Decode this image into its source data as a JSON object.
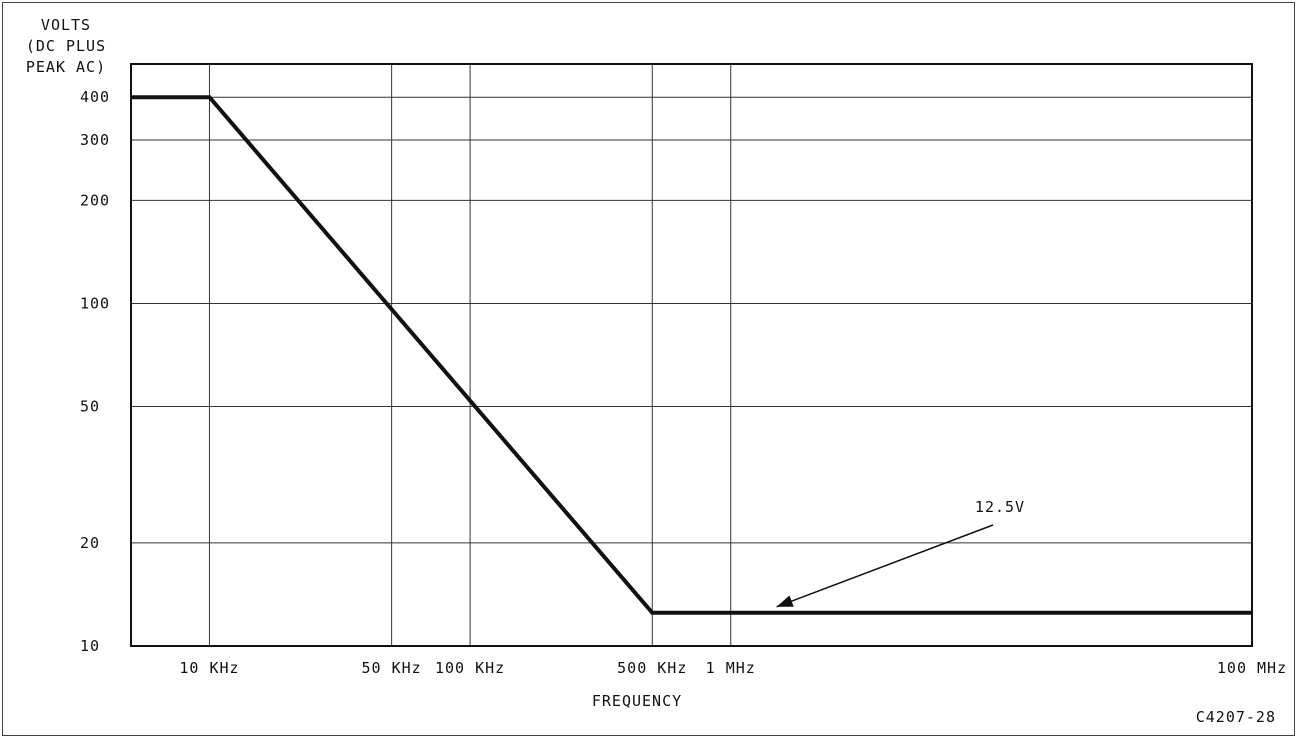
{
  "chart_data": {
    "type": "line",
    "x_scale": "log",
    "y_scale": "log",
    "ylabel_lines": [
      "VOLTS",
      "(DC PLUS",
      "PEAK AC)"
    ],
    "xlabel": "FREQUENCY",
    "xlim": [
      5000,
      100000000
    ],
    "ylim": [
      10,
      500
    ],
    "grid": true,
    "series": [
      {
        "x": [
          5000,
          10000,
          500000,
          100000000
        ],
        "y": [
          400,
          400,
          12.5,
          12.5
        ]
      }
    ],
    "x_ticks": [
      {
        "value": 10000,
        "label": "10 KHz"
      },
      {
        "value": 50000,
        "label": "50 KHz"
      },
      {
        "value": 100000,
        "label": "100 KHz"
      },
      {
        "value": 500000,
        "label": "500 KHz"
      },
      {
        "value": 1000000,
        "label": "1 MHz"
      },
      {
        "value": 100000000,
        "label": "100 MHz"
      }
    ],
    "y_ticks": [
      {
        "value": 400,
        "label": "400"
      },
      {
        "value": 300,
        "label": "300"
      },
      {
        "value": 200,
        "label": "200"
      },
      {
        "value": 100,
        "label": "100"
      },
      {
        "value": 50,
        "label": "50"
      },
      {
        "value": 20,
        "label": "20"
      },
      {
        "value": 10,
        "label": "10"
      }
    ],
    "annotation": {
      "text": "12.5V",
      "x": 1500000,
      "y": 12.5
    }
  },
  "figure_code": "C4207-28"
}
